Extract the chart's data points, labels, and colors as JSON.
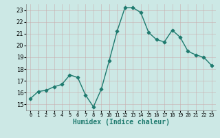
{
  "x": [
    0,
    1,
    2,
    3,
    4,
    5,
    6,
    7,
    8,
    9,
    10,
    11,
    12,
    13,
    14,
    15,
    16,
    17,
    18,
    19,
    20,
    21,
    22,
    23
  ],
  "y": [
    15.5,
    16.1,
    16.2,
    16.5,
    16.7,
    17.5,
    17.3,
    15.8,
    14.8,
    16.3,
    18.7,
    21.2,
    23.2,
    23.2,
    22.8,
    21.1,
    20.5,
    20.3,
    21.3,
    20.7,
    19.5,
    19.2,
    19.0,
    18.3
  ],
  "line_color": "#1e7a6e",
  "marker": "D",
  "marker_size": 2.5,
  "marker_color": "#1e7a6e",
  "bg_color": "#cce8e5",
  "grid_color": "#b8d8d5",
  "xlabel": "Humidex (Indice chaleur)",
  "xlabel_fontsize": 7,
  "xtick_labels": [
    "0",
    "1",
    "2",
    "3",
    "4",
    "5",
    "6",
    "7",
    "8",
    "9",
    "10",
    "11",
    "12",
    "13",
    "14",
    "15",
    "16",
    "17",
    "18",
    "19",
    "20",
    "21",
    "22",
    "23"
  ],
  "ylim": [
    14.5,
    23.5
  ],
  "yticks": [
    15,
    16,
    17,
    18,
    19,
    20,
    21,
    22,
    23
  ],
  "xlim": [
    -0.5,
    23.5
  ],
  "ytick_fontsize": 6,
  "xtick_fontsize": 5,
  "linewidth": 1.0
}
